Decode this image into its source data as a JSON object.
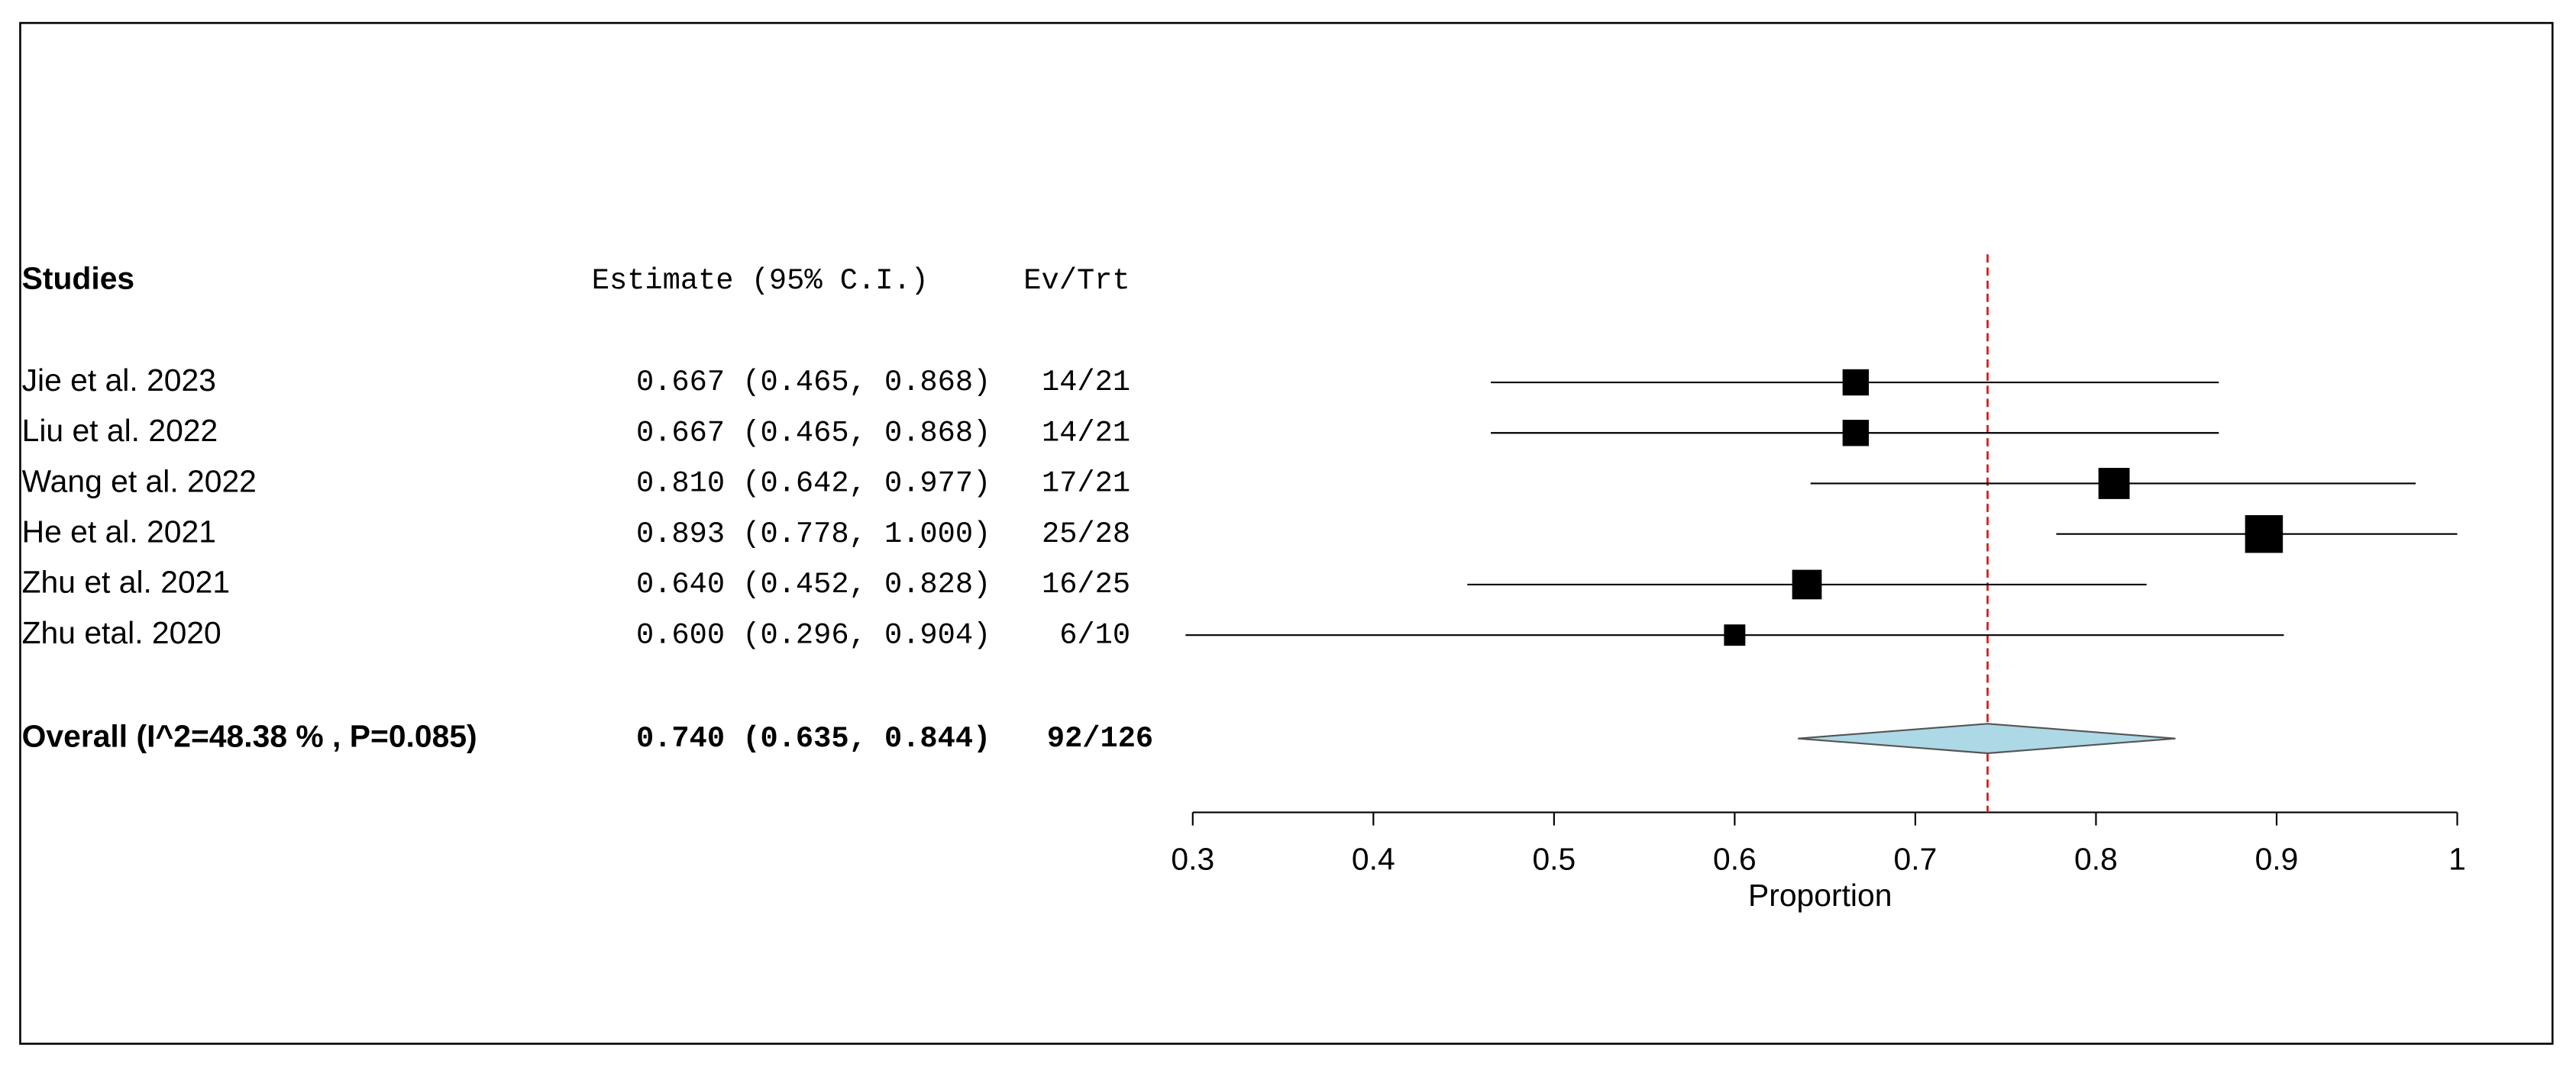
{
  "chart_data": {
    "type": "forest",
    "headers": {
      "studies": "Studies",
      "estimate": "Estimate (95% C.I.)",
      "ev_trt": "Ev/Trt"
    },
    "studies": [
      "Jie et al. 2023",
      "Liu et al. 2022",
      "Wang et al. 2022",
      "He et al. 2021",
      "Zhu et al. 2021",
      "Zhu etal. 2020"
    ],
    "estimates": [
      0.667,
      0.667,
      0.81,
      0.893,
      0.64,
      0.6
    ],
    "lower": [
      0.465,
      0.465,
      0.642,
      0.778,
      0.452,
      0.296
    ],
    "upper": [
      0.868,
      0.868,
      0.977,
      1.0,
      0.828,
      0.904
    ],
    "value_labels": [
      "0.667 (0.465, 0.868)",
      "0.667 (0.465, 0.868)",
      "0.810 (0.642, 0.977)",
      "0.893 (0.778, 1.000)",
      "0.640 (0.452, 0.828)",
      "0.600 (0.296, 0.904)"
    ],
    "ev_trt": [
      "14/21",
      "14/21",
      "17/21",
      "25/28",
      "16/25",
      "6/10"
    ],
    "weights": [
      13.5,
      13.5,
      19.0,
      27.9,
      17.1,
      8.9
    ],
    "overall": {
      "label": "Overall (I^2=48.38 % , P=0.085)",
      "estimate": 0.74,
      "lower": 0.635,
      "upper": 0.844,
      "value_label": "0.740 (0.635, 0.844)",
      "ev_trt": "92/126"
    },
    "box_color": "#000000",
    "diamond_color": "#add8e6",
    "reference_color": "#cc2222",
    "xlabel": "Proportion",
    "xlim": [
      0.3,
      1
    ],
    "xticks": [
      0.3,
      0.4,
      0.5,
      0.6,
      0.7,
      0.8,
      0.9,
      1
    ]
  }
}
